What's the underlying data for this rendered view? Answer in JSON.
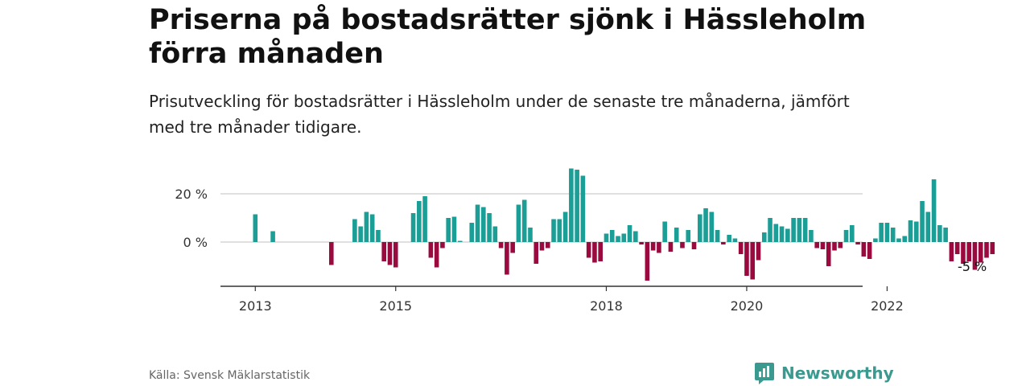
{
  "title": "Priserna på bostadsrätter sjönk i Hässleholm förra månaden",
  "subtitle": "Prisutveckling för bostadsrätter i Hässleholm under de senaste tre månaderna, jämfört med tre månader tidigare.",
  "source": "Källa: Svensk Mäklarstatistik",
  "brand": "Newsworthy",
  "colors": {
    "positive": "#1a9e95",
    "negative": "#9b0a3f",
    "grid": "#d6d6d6",
    "axis": "#333333",
    "brand": "#3a9a8f"
  },
  "chart_data": {
    "type": "bar",
    "start": "2012-12",
    "yticks": [
      0,
      20
    ],
    "ytick_format": "{v} %",
    "xticks": [
      {
        "label": "2013",
        "month": "2013-01"
      },
      {
        "label": "2015",
        "month": "2015-01"
      },
      {
        "label": "2018",
        "month": "2018-01"
      },
      {
        "label": "2020",
        "month": "2020-01"
      },
      {
        "label": "2022",
        "month": "2022-01"
      }
    ],
    "annotation": {
      "text": "-5 %",
      "month": "2023-02"
    },
    "ylim": [
      -18,
      32
    ],
    "values": [
      null,
      11.5,
      null,
      null,
      4.5,
      null,
      null,
      null,
      null,
      null,
      null,
      null,
      null,
      null,
      -9.5,
      null,
      null,
      null,
      9.5,
      6.5,
      12.5,
      11.5,
      5,
      -8,
      -9.5,
      -10.5,
      null,
      null,
      12,
      17,
      19,
      -6.5,
      -10.5,
      -2.5,
      10,
      10.5,
      0.5,
      null,
      8,
      15.5,
      14.5,
      12,
      6.5,
      -2.5,
      -13.5,
      -4.5,
      15.5,
      17.5,
      6,
      -9,
      -3.5,
      -2.5,
      9.5,
      9.5,
      12.5,
      30.5,
      30,
      27.5,
      -6.5,
      -8.5,
      -8,
      3.5,
      5,
      2.5,
      3.5,
      7,
      4.5,
      -1,
      -16,
      -3.5,
      -4.5,
      8.5,
      -4,
      6,
      -2.5,
      5,
      -3,
      11.5,
      14,
      12.5,
      5,
      -1,
      3,
      1.5,
      -5,
      -14,
      -15.5,
      -7.5,
      4,
      10,
      7.5,
      6.5,
      5.5,
      10,
      10,
      10,
      5,
      -2.5,
      -3,
      -10,
      -3.5,
      -2.5,
      5,
      7,
      -1,
      -6,
      -7,
      1.5,
      8,
      8,
      6,
      1.5,
      2.5,
      9,
      8.5,
      17,
      12.5,
      26,
      7,
      6,
      -8,
      -5,
      -9,
      -8,
      -11.5,
      -8.5,
      -6.5,
      -5
    ]
  }
}
